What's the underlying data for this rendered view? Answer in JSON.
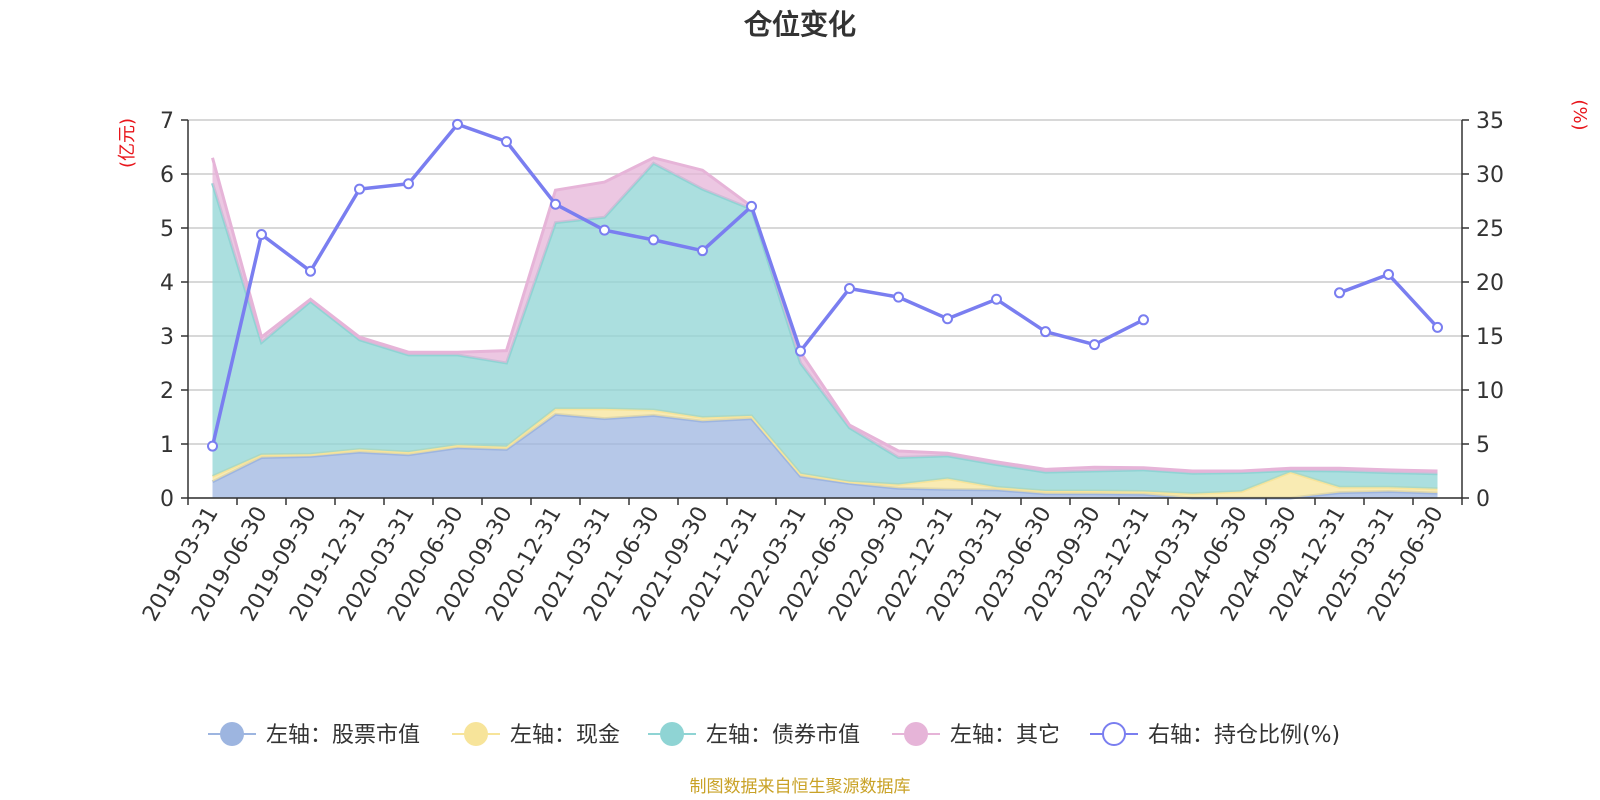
{
  "chart_data": {
    "type": "area",
    "title": "仓位变化",
    "left_axis": {
      "unit": "(亿元)",
      "ylim": [
        0,
        7
      ],
      "ticks": [
        0,
        1,
        2,
        3,
        4,
        5,
        6,
        7
      ]
    },
    "right_axis": {
      "unit": "(%)",
      "ylim": [
        0,
        35
      ],
      "ticks": [
        0,
        5,
        10,
        15,
        20,
        25,
        30,
        35
      ]
    },
    "grid": true,
    "legend_position": "bottom",
    "categories": [
      "2019-03-31",
      "2019-06-30",
      "2019-09-30",
      "2019-12-31",
      "2020-03-31",
      "2020-06-30",
      "2020-09-30",
      "2020-12-31",
      "2021-03-31",
      "2021-06-30",
      "2021-09-30",
      "2021-12-31",
      "2022-03-31",
      "2022-06-30",
      "2022-09-30",
      "2022-12-31",
      "2023-03-31",
      "2023-06-30",
      "2023-09-30",
      "2023-12-31",
      "2024-03-31",
      "2024-06-30",
      "2024-09-30",
      "2024-12-31",
      "2025-03-31",
      "2025-06-30"
    ],
    "series": [
      {
        "name": "左轴：股票市值",
        "axis": "left",
        "type": "area",
        "color": "#9db5e0",
        "values": [
          0.3,
          0.75,
          0.77,
          0.85,
          0.8,
          0.93,
          0.9,
          1.55,
          1.47,
          1.53,
          1.42,
          1.47,
          0.4,
          0.27,
          0.18,
          0.16,
          0.15,
          0.08,
          0.08,
          0.07,
          0.0,
          0.0,
          0.0,
          0.1,
          0.12,
          0.09
        ]
      },
      {
        "name": "左轴：现金",
        "axis": "left",
        "type": "area",
        "color": "#f7e49a",
        "values": [
          0.1,
          0.05,
          0.04,
          0.05,
          0.05,
          0.05,
          0.05,
          0.1,
          0.18,
          0.1,
          0.07,
          0.05,
          0.05,
          0.03,
          0.07,
          0.2,
          0.05,
          0.05,
          0.05,
          0.05,
          0.08,
          0.12,
          0.48,
          0.1,
          0.08,
          0.08
        ]
      },
      {
        "name": "左轴：债券市值",
        "axis": "left",
        "type": "area",
        "color": "#8fd4d4",
        "values": [
          5.43,
          2.08,
          2.83,
          2.03,
          1.8,
          1.67,
          1.55,
          3.45,
          3.55,
          4.57,
          4.23,
          3.83,
          2.05,
          1.0,
          0.5,
          0.42,
          0.42,
          0.35,
          0.37,
          0.4,
          0.38,
          0.35,
          0.03,
          0.3,
          0.27,
          0.28
        ]
      },
      {
        "name": "左轴：其它",
        "axis": "left",
        "type": "area",
        "color": "#e6b4d8",
        "values": [
          0.47,
          0.1,
          0.04,
          0.05,
          0.05,
          0.05,
          0.23,
          0.6,
          0.65,
          0.1,
          0.35,
          0.05,
          0.2,
          0.05,
          0.12,
          0.05,
          0.05,
          0.05,
          0.07,
          0.04,
          0.04,
          0.03,
          0.04,
          0.05,
          0.05,
          0.05
        ]
      },
      {
        "name": "右轴：持仓比例(%)",
        "axis": "right",
        "type": "line",
        "color": "#7a7ef0",
        "values": [
          4.8,
          24.4,
          21.0,
          28.6,
          29.1,
          34.6,
          33.0,
          27.2,
          24.8,
          23.9,
          22.9,
          27.0,
          13.6,
          19.4,
          18.6,
          16.6,
          18.4,
          15.4,
          14.2,
          16.5,
          null,
          null,
          null,
          19.0,
          20.7,
          15.8
        ]
      }
    ],
    "source": "制图数据来自恒生聚源数据库"
  }
}
